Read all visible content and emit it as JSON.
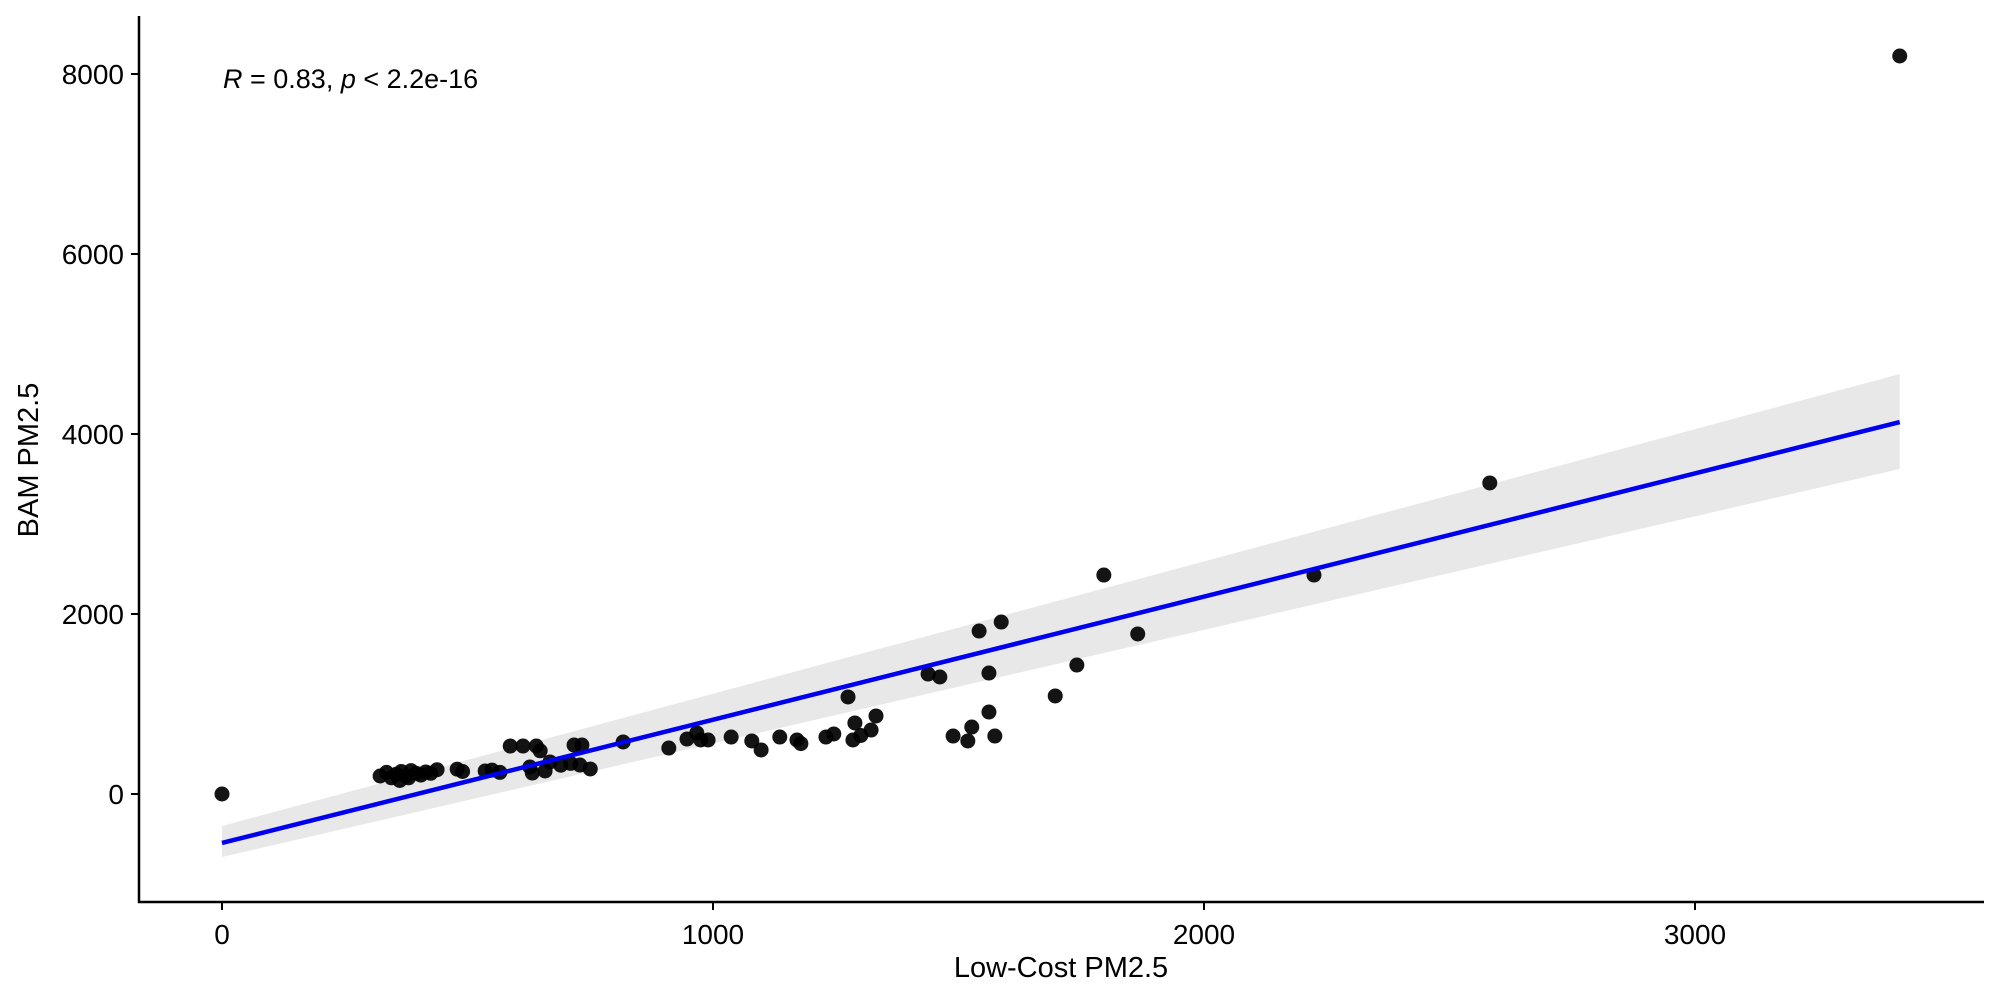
{
  "chart_data": {
    "type": "scatter",
    "title": "",
    "xlabel": "Low-Cost PM2.5",
    "ylabel": "BAM PM2.5",
    "xlim": [
      -170,
      3560
    ],
    "ylim": [
      -1200,
      8700
    ],
    "x_ticks": [
      0,
      1000,
      2000,
      3000
    ],
    "y_ticks": [
      0,
      2000,
      4000,
      6000,
      8000
    ],
    "x_tick_labels": [
      "0",
      "1000",
      "2000",
      "3000"
    ],
    "y_tick_labels": [
      "0",
      "2000",
      "4000",
      "6000",
      "8000"
    ],
    "grid": false,
    "legend": null,
    "annotation": {
      "text_r": "R",
      "text_r_rest": " = 0.83, ",
      "text_p": "p",
      "text_p_rest": " < 2.2e-16",
      "R": 0.83,
      "p": "< 2.2e-16",
      "position": [
        0,
        8000
      ]
    },
    "regression": {
      "method": "lm",
      "color": "#0000ee",
      "band_color": "#e8e8e8",
      "line": [
        [
          0,
          -544
        ],
        [
          3417,
          4133
        ]
      ],
      "band_upper": [
        [
          0,
          -356
        ],
        [
          3417,
          4667
        ]
      ],
      "band_lower": [
        [
          0,
          -700
        ],
        [
          3417,
          3611
        ]
      ]
    },
    "point_color": "#000000",
    "points": [
      {
        "x": 0,
        "y": 0
      },
      {
        "x": 322,
        "y": 200
      },
      {
        "x": 335,
        "y": 240
      },
      {
        "x": 345,
        "y": 180
      },
      {
        "x": 355,
        "y": 220
      },
      {
        "x": 365,
        "y": 250
      },
      {
        "x": 375,
        "y": 200
      },
      {
        "x": 385,
        "y": 260
      },
      {
        "x": 395,
        "y": 230
      },
      {
        "x": 405,
        "y": 210
      },
      {
        "x": 415,
        "y": 245
      },
      {
        "x": 425,
        "y": 230
      },
      {
        "x": 438,
        "y": 270
      },
      {
        "x": 362,
        "y": 150
      },
      {
        "x": 380,
        "y": 180
      },
      {
        "x": 479,
        "y": 276
      },
      {
        "x": 490,
        "y": 250
      },
      {
        "x": 536,
        "y": 256
      },
      {
        "x": 550,
        "y": 265
      },
      {
        "x": 566,
        "y": 240
      },
      {
        "x": 587,
        "y": 533
      },
      {
        "x": 613,
        "y": 533
      },
      {
        "x": 640,
        "y": 533
      },
      {
        "x": 627,
        "y": 300
      },
      {
        "x": 632,
        "y": 233
      },
      {
        "x": 658,
        "y": 256
      },
      {
        "x": 668,
        "y": 356
      },
      {
        "x": 648,
        "y": 480
      },
      {
        "x": 690,
        "y": 320
      },
      {
        "x": 717,
        "y": 544
      },
      {
        "x": 733,
        "y": 544
      },
      {
        "x": 729,
        "y": 322
      },
      {
        "x": 750,
        "y": 278
      },
      {
        "x": 710,
        "y": 340
      },
      {
        "x": 817,
        "y": 578
      },
      {
        "x": 910,
        "y": 511
      },
      {
        "x": 947,
        "y": 611
      },
      {
        "x": 967,
        "y": 678
      },
      {
        "x": 975,
        "y": 600
      },
      {
        "x": 990,
        "y": 600
      },
      {
        "x": 1037,
        "y": 633
      },
      {
        "x": 1079,
        "y": 589
      },
      {
        "x": 1098,
        "y": 489
      },
      {
        "x": 1136,
        "y": 633
      },
      {
        "x": 1171,
        "y": 600
      },
      {
        "x": 1179,
        "y": 560
      },
      {
        "x": 1230,
        "y": 633
      },
      {
        "x": 1246,
        "y": 667
      },
      {
        "x": 1275,
        "y": 1078
      },
      {
        "x": 1289,
        "y": 789
      },
      {
        "x": 1285,
        "y": 600
      },
      {
        "x": 1301,
        "y": 650
      },
      {
        "x": 1322,
        "y": 711
      },
      {
        "x": 1332,
        "y": 867
      },
      {
        "x": 1438,
        "y": 1333
      },
      {
        "x": 1462,
        "y": 1300
      },
      {
        "x": 1489,
        "y": 644
      },
      {
        "x": 1519,
        "y": 589
      },
      {
        "x": 1527,
        "y": 744
      },
      {
        "x": 1542,
        "y": 1811
      },
      {
        "x": 1562,
        "y": 1344
      },
      {
        "x": 1562,
        "y": 911
      },
      {
        "x": 1574,
        "y": 644
      },
      {
        "x": 1587,
        "y": 1911
      },
      {
        "x": 1697,
        "y": 1089
      },
      {
        "x": 1741,
        "y": 1433
      },
      {
        "x": 1796,
        "y": 2433
      },
      {
        "x": 1865,
        "y": 1778
      },
      {
        "x": 2224,
        "y": 2433
      },
      {
        "x": 2582,
        "y": 3456
      },
      {
        "x": 3417,
        "y": 8200
      }
    ]
  }
}
